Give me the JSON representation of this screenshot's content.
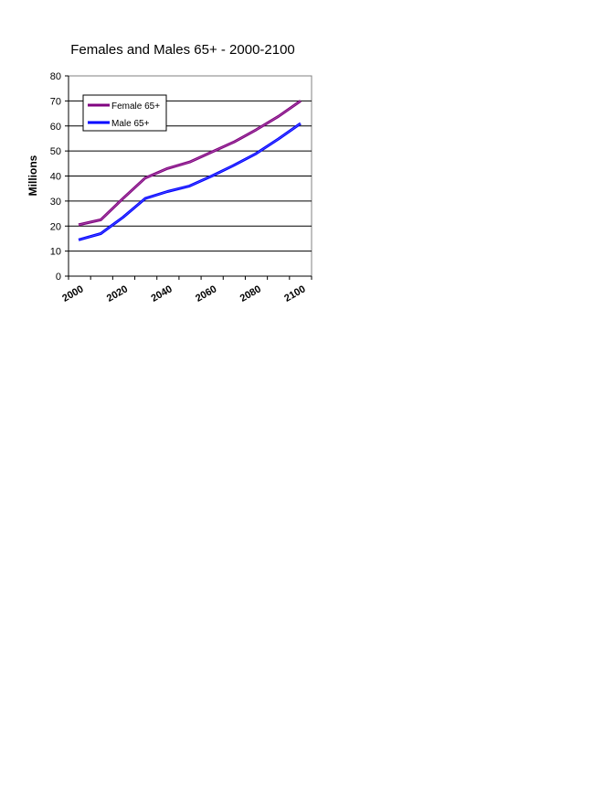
{
  "chart_data": {
    "type": "line",
    "title": "Females and Males 65+ - 2000-2100",
    "xlabel": "",
    "ylabel": "Millions",
    "ylim": [
      0,
      80
    ],
    "yticks": [
      "0",
      "10",
      "20",
      "30",
      "40",
      "50",
      "60",
      "70",
      "80"
    ],
    "xticks": [
      "2000",
      "2020",
      "2040",
      "2060",
      "2080",
      "2100"
    ],
    "grid": true,
    "legend_position": "top-left",
    "x": [
      2000,
      2010,
      2020,
      2030,
      2040,
      2050,
      2060,
      2070,
      2080,
      2090,
      2100
    ],
    "series": [
      {
        "name": "Female 65+",
        "color": "#800080",
        "values": [
          20.5,
          22.5,
          31.0,
          39.2,
          43.0,
          45.6,
          49.6,
          53.6,
          58.5,
          63.8,
          70.0
        ]
      },
      {
        "name": "Male 65+",
        "color": "#0000ff",
        "values": [
          14.5,
          17.0,
          23.5,
          31.0,
          33.8,
          36.0,
          40.0,
          44.3,
          49.0,
          54.8,
          61.0
        ]
      }
    ]
  }
}
